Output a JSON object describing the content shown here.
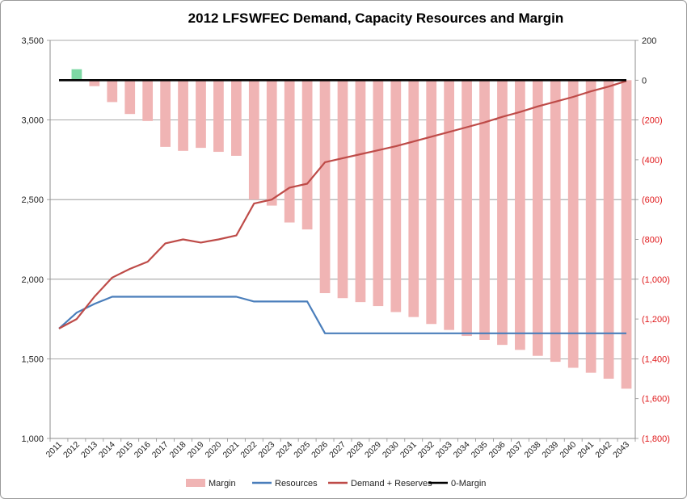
{
  "chart_data": {
    "type": "bar",
    "title_left": "2012 LFS",
    "title_right": "WFEC Demand, Capacity Resources and Margin",
    "categories": [
      "2011",
      "2012",
      "2013",
      "2014",
      "2015",
      "2016",
      "2017",
      "2018",
      "2019",
      "2020",
      "2021",
      "2022",
      "2023",
      "2024",
      "2025",
      "2026",
      "2027",
      "2028",
      "2029",
      "2030",
      "2031",
      "2032",
      "2033",
      "2034",
      "2035",
      "2036",
      "2037",
      "2038",
      "2039",
      "2040",
      "2041",
      "2042",
      "2043"
    ],
    "ylim_left": [
      1000,
      3500
    ],
    "yticks_left": [
      1000,
      1500,
      2000,
      2500,
      3000,
      3500
    ],
    "yticks_left_labels": [
      "1,000",
      "1,500",
      "2,000",
      "2,500",
      "3,000",
      "3,500"
    ],
    "ylim_right": [
      -1800,
      200
    ],
    "yticks_right": [
      200,
      0,
      -200,
      -400,
      -600,
      -800,
      -1000,
      -1200,
      -1400,
      -1600,
      -1800
    ],
    "yticks_right_labels": [
      "200",
      "0",
      "(200)",
      "(400)",
      "(600)",
      "(800)",
      "(1,000)",
      "(1,200)",
      "(1,400)",
      "(1,600)",
      "(1,800)"
    ],
    "series": [
      {
        "name": "Margin",
        "kind": "bar",
        "axis": "right",
        "color": "#f0b4b4",
        "positive_color": "#7dd8a4",
        "values": [
          0,
          55,
          -30,
          -110,
          -170,
          -205,
          -335,
          -355,
          -340,
          -360,
          -380,
          -600,
          -630,
          -715,
          -750,
          -1070,
          -1095,
          -1115,
          -1135,
          -1165,
          -1190,
          -1225,
          -1255,
          -1285,
          -1305,
          -1330,
          -1355,
          -1385,
          -1415,
          -1445,
          -1470,
          -1500,
          -1550
        ]
      },
      {
        "name": "Resources",
        "kind": "line",
        "axis": "left",
        "color": "#4a7ebb",
        "values": [
          1690,
          1790,
          1845,
          1890,
          1890,
          1890,
          1890,
          1890,
          1890,
          1890,
          1890,
          1860,
          1860,
          1860,
          1860,
          1660,
          1660,
          1660,
          1660,
          1660,
          1660,
          1660,
          1660,
          1660,
          1660,
          1660,
          1660,
          1660,
          1660,
          1660,
          1660,
          1660,
          1660
        ]
      },
      {
        "name": "Demand + Reserves",
        "kind": "line",
        "axis": "left",
        "color": "#be4b48",
        "values": [
          1690,
          1750,
          1890,
          2010,
          2065,
          2110,
          2225,
          2250,
          2230,
          2250,
          2275,
          2475,
          2500,
          2575,
          2600,
          2735,
          2760,
          2785,
          2810,
          2835,
          2865,
          2895,
          2925,
          2955,
          2985,
          3020,
          3050,
          3085,
          3115,
          3145,
          3180,
          3210,
          3245
        ]
      },
      {
        "name": "0-Margin",
        "kind": "line",
        "axis": "right",
        "color": "#000000",
        "values": [
          0,
          0,
          0,
          0,
          0,
          0,
          0,
          0,
          0,
          0,
          0,
          0,
          0,
          0,
          0,
          0,
          0,
          0,
          0,
          0,
          0,
          0,
          0,
          0,
          0,
          0,
          0,
          0,
          0,
          0,
          0,
          0,
          0
        ]
      }
    ],
    "legend_position": "bottom",
    "grid": "horizontal"
  }
}
